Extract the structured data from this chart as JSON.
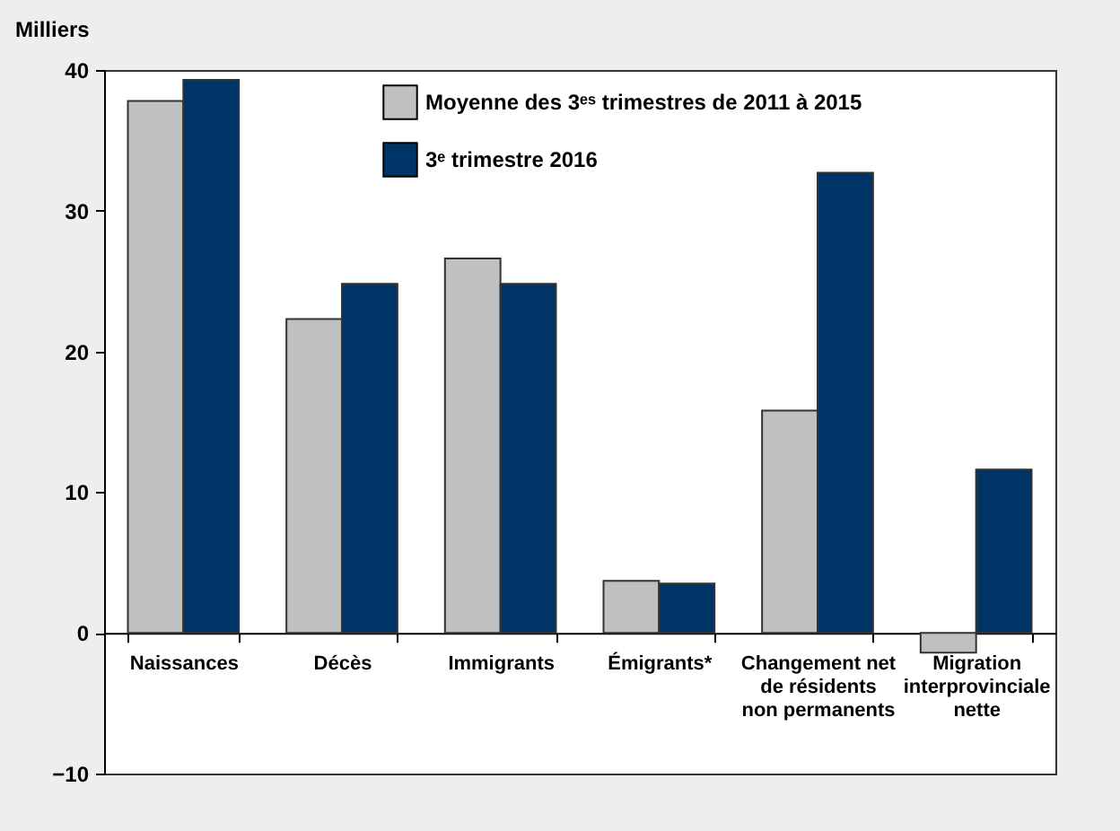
{
  "chart_data": {
    "type": "bar",
    "ylabel": "Milliers",
    "categories": [
      "Naissances",
      "Décès",
      "Immigrants",
      "Émigrants*",
      "Changement net de résidents non permanents",
      "Migration interprovinciale nette"
    ],
    "series": [
      {
        "name": "Moyenne des 3ᵉˢ trimestres de 2011 à 2015",
        "color": "#c0c0c0",
        "values": [
          37.8,
          22.3,
          26.6,
          3.7,
          15.8,
          -1.4
        ]
      },
      {
        "name": "3ᵉ trimestre 2016",
        "color": "#003366",
        "values": [
          39.3,
          24.8,
          24.8,
          3.5,
          32.7,
          11.6
        ]
      }
    ],
    "ylim": [
      -10,
      40
    ],
    "yticks": [
      -10,
      0,
      10,
      20,
      30,
      40
    ],
    "legend": "top"
  }
}
